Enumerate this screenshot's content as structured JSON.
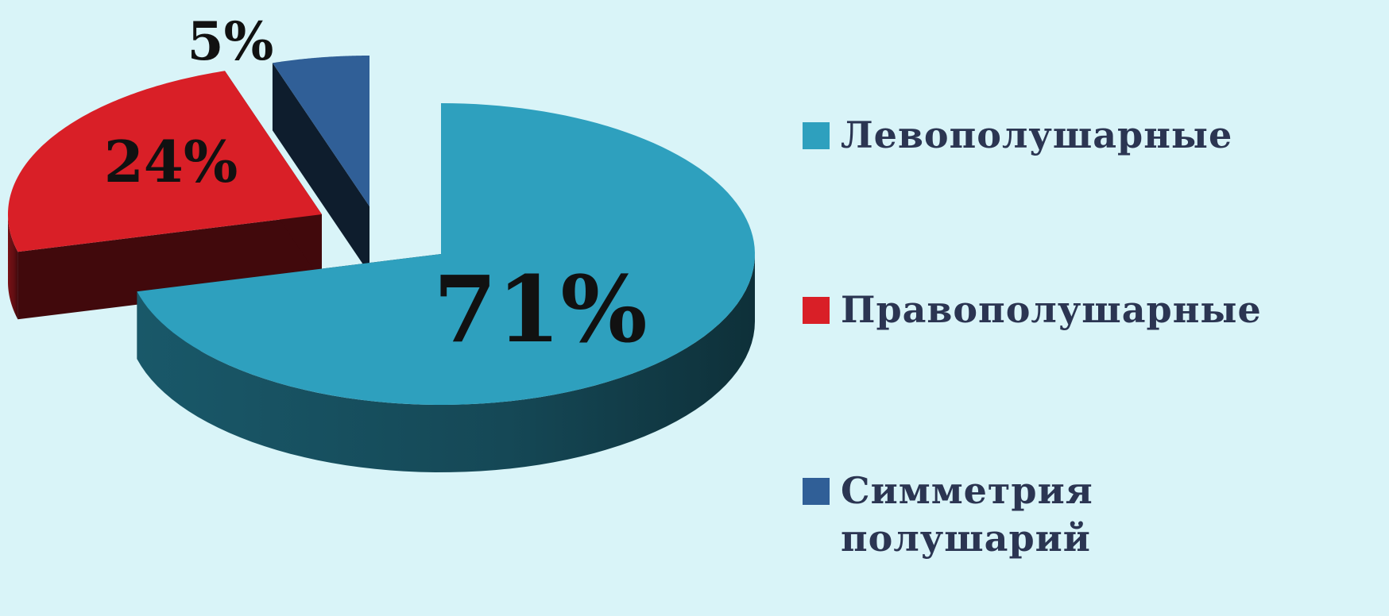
{
  "chart_data": {
    "type": "pie",
    "categories": [
      "Левополушарные",
      "Правополушарные",
      "Симметрия полушарий"
    ],
    "values": [
      71,
      24,
      5
    ],
    "value_labels": [
      "71%",
      "24%",
      "5%"
    ],
    "colors": [
      "#2ea0be",
      "#d91f27",
      "#305f97"
    ],
    "legend": "right"
  }
}
